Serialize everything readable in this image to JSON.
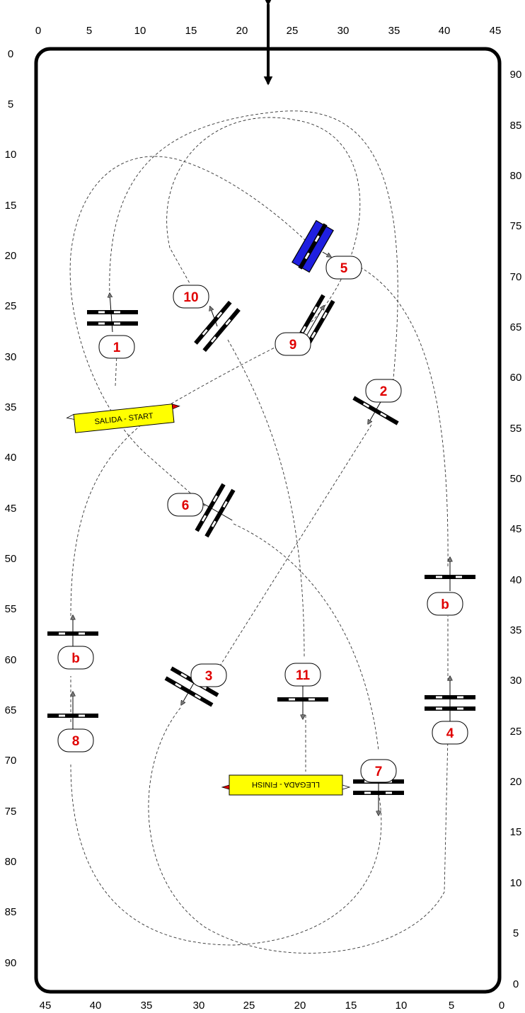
{
  "axes": {
    "top": [
      "0",
      "5",
      "10",
      "15",
      "20",
      "25",
      "30",
      "35",
      "40",
      "45"
    ],
    "bottom": [
      "45",
      "40",
      "35",
      "30",
      "25",
      "20",
      "15",
      "10",
      "5",
      "0"
    ],
    "left": [
      "0",
      "5",
      "10",
      "15",
      "20",
      "25",
      "30",
      "35",
      "40",
      "45",
      "50",
      "55",
      "60",
      "65",
      "70",
      "75",
      "80",
      "85",
      "90"
    ],
    "right": [
      "90",
      "85",
      "80",
      "75",
      "70",
      "65",
      "60",
      "55",
      "50",
      "45",
      "40",
      "35",
      "30",
      "25",
      "20",
      "15",
      "10",
      "5",
      "0"
    ]
  },
  "banners": {
    "start": "SALIDA - START",
    "finish": "LLEGADA - FINISH"
  },
  "obstacles": [
    {
      "id": "1",
      "label": "1"
    },
    {
      "id": "2",
      "label": "2"
    },
    {
      "id": "3",
      "label": "3"
    },
    {
      "id": "4",
      "label": "4"
    },
    {
      "id": "5",
      "label": "5"
    },
    {
      "id": "6",
      "label": "6"
    },
    {
      "id": "7",
      "label": "7"
    },
    {
      "id": "8",
      "label": "8"
    },
    {
      "id": "9",
      "label": "9"
    },
    {
      "id": "10",
      "label": "10"
    },
    {
      "id": "11",
      "label": "11"
    },
    {
      "id": "b-left",
      "label": "b"
    },
    {
      "id": "b-right",
      "label": "b"
    }
  ],
  "colors": {
    "arena_border": "#000000",
    "number": "#e00000",
    "banner": "#ffff00",
    "water_jump": "#1f1fe0",
    "flag_red": "#e00000",
    "flag_white": "#ffffff",
    "pole_white": "#ffffff",
    "pole_black": "#000000",
    "arrow": "#777777",
    "course_line": "#333333"
  }
}
